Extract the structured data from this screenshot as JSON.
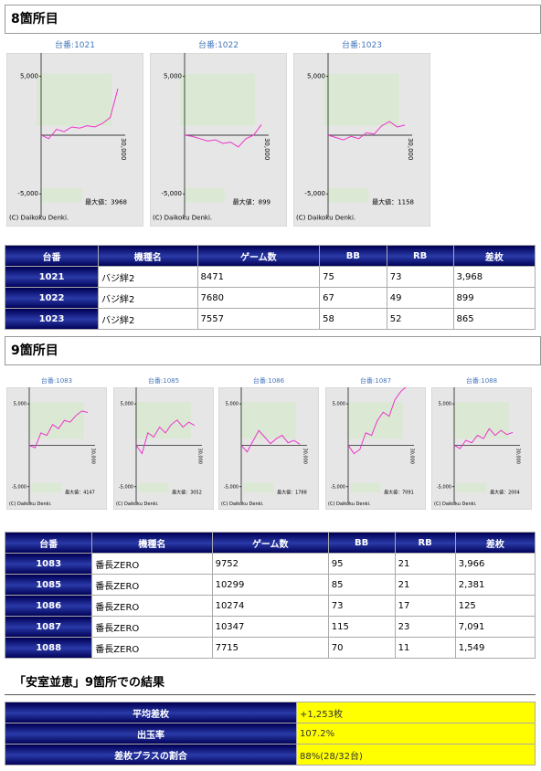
{
  "sections": [
    {
      "title": "8箇所目",
      "graphs": [
        {
          "type": "line",
          "title": "台番:1021",
          "ylim": [
            -7000,
            7000
          ],
          "yticks": [
            {
              "value": 5000,
              "label": "5,000"
            },
            {
              "value": -5000,
              "label": "-5,000"
            }
          ],
          "x_end_label": "30,000",
          "max_label": "最大値：3968",
          "credit": "(C) Daikoku Denki.",
          "color": "#ee33cc",
          "values": [
            0,
            -300,
            500,
            300,
            700,
            600,
            800,
            700,
            1000,
            1500,
            3968
          ]
        },
        {
          "type": "line",
          "title": "台番:1022",
          "ylim": [
            -7000,
            7000
          ],
          "yticks": [
            {
              "value": 5000,
              "label": "5,000"
            },
            {
              "value": -5000,
              "label": "-5,000"
            }
          ],
          "x_end_label": "30,000",
          "max_label": "最大値：899",
          "credit": "(C) Daikoku Denki.",
          "color": "#ee33cc",
          "values": [
            0,
            -100,
            -300,
            -500,
            -400,
            -700,
            -600,
            -1000,
            -300,
            0,
            899
          ]
        },
        {
          "type": "line",
          "title": "台番:1023",
          "ylim": [
            -7000,
            7000
          ],
          "yticks": [
            {
              "value": 5000,
              "label": "5,000"
            },
            {
              "value": -5000,
              "label": "-5,000"
            }
          ],
          "x_end_label": "30,000",
          "max_label": "最大値：1158",
          "credit": "(C) Daikoku Denki.",
          "color": "#ee33cc",
          "values": [
            0,
            -200,
            -400,
            -100,
            -300,
            200,
            100,
            800,
            1158,
            700,
            865
          ]
        }
      ],
      "table": {
        "headers": [
          "台番",
          "機種名",
          "ゲーム数",
          "BB",
          "RB",
          "差枚"
        ],
        "rows": [
          [
            "1021",
            "バジ絆2",
            "8471",
            "75",
            "73",
            "3,968"
          ],
          [
            "1022",
            "バジ絆2",
            "7680",
            "67",
            "49",
            "899"
          ],
          [
            "1023",
            "バジ絆2",
            "7557",
            "58",
            "52",
            "865"
          ]
        ]
      }
    },
    {
      "title": "9箇所目",
      "graphs": [
        {
          "type": "line",
          "title": "台番:1083",
          "ylim": [
            -7000,
            7000
          ],
          "yticks": [
            {
              "value": 5000,
              "label": "5,000"
            },
            {
              "value": -5000,
              "label": "-5,000"
            }
          ],
          "x_end_label": "30,000",
          "max_label": "最大値：4147",
          "credit": "(C) Daikoku Denki.",
          "color": "#ee33cc",
          "values": [
            0,
            -300,
            1500,
            1200,
            2500,
            2000,
            3000,
            2800,
            3600,
            4147,
            3966
          ]
        },
        {
          "type": "line",
          "title": "台番:1085",
          "ylim": [
            -7000,
            7000
          ],
          "yticks": [
            {
              "value": 5000,
              "label": "5,000"
            },
            {
              "value": -5000,
              "label": "-5,000"
            }
          ],
          "x_end_label": "30,000",
          "max_label": "最大値：3052",
          "credit": "(C) Daikoku Denki.",
          "color": "#ee33cc",
          "values": [
            0,
            -1000,
            1500,
            1000,
            2200,
            1500,
            2500,
            3052,
            2200,
            2800,
            2381
          ]
        },
        {
          "type": "line",
          "title": "台番:1086",
          "ylim": [
            -7000,
            7000
          ],
          "yticks": [
            {
              "value": 5000,
              "label": "5,000"
            },
            {
              "value": -5000,
              "label": "-5,000"
            }
          ],
          "x_end_label": "30,000",
          "max_label": "最大値：1788",
          "credit": "(C) Daikoku Denki.",
          "color": "#ee33cc",
          "values": [
            0,
            -800,
            500,
            1788,
            1000,
            200,
            800,
            1200,
            300,
            600,
            125
          ]
        },
        {
          "type": "line",
          "title": "台番:1087",
          "ylim": [
            -7000,
            7000
          ],
          "yticks": [
            {
              "value": 5000,
              "label": "5,000"
            },
            {
              "value": -5000,
              "label": "-5,000"
            }
          ],
          "x_end_label": "30,000",
          "max_label": "最大値：7091",
          "credit": "(C) Daikoku Denki.",
          "color": "#ee33cc",
          "values": [
            0,
            -1000,
            -500,
            1500,
            1200,
            3000,
            4000,
            3500,
            5500,
            6500,
            7091
          ]
        },
        {
          "type": "line",
          "title": "台番:1088",
          "ylim": [
            -7000,
            7000
          ],
          "yticks": [
            {
              "value": 5000,
              "label": "5,000"
            },
            {
              "value": -5000,
              "label": "-5,000"
            }
          ],
          "x_end_label": "30,000",
          "max_label": "最大値：2004",
          "credit": "(C) Daikoku Denki.",
          "color": "#ee33cc",
          "values": [
            0,
            -400,
            600,
            300,
            1200,
            800,
            2004,
            1200,
            1800,
            1300,
            1549
          ]
        }
      ],
      "table": {
        "headers": [
          "台番",
          "機種名",
          "ゲーム数",
          "BB",
          "RB",
          "差枚"
        ],
        "rows": [
          [
            "1083",
            "番長ZERO",
            "9752",
            "95",
            "21",
            "3,966"
          ],
          [
            "1085",
            "番長ZERO",
            "10299",
            "85",
            "21",
            "2,381"
          ],
          [
            "1086",
            "番長ZERO",
            "10274",
            "73",
            "17",
            "125"
          ],
          [
            "1087",
            "番長ZERO",
            "10347",
            "115",
            "23",
            "7,091"
          ],
          [
            "1088",
            "番長ZERO",
            "7715",
            "70",
            "11",
            "1,549"
          ]
        ]
      }
    }
  ],
  "summary": {
    "title": "「安室並恵」9箇所での結果",
    "rows": [
      [
        "平均差枚",
        "+1,253枚"
      ],
      [
        "出玉率",
        "107.2%"
      ],
      [
        "差枚プラスの割合",
        "88%(28/32台)"
      ]
    ]
  }
}
